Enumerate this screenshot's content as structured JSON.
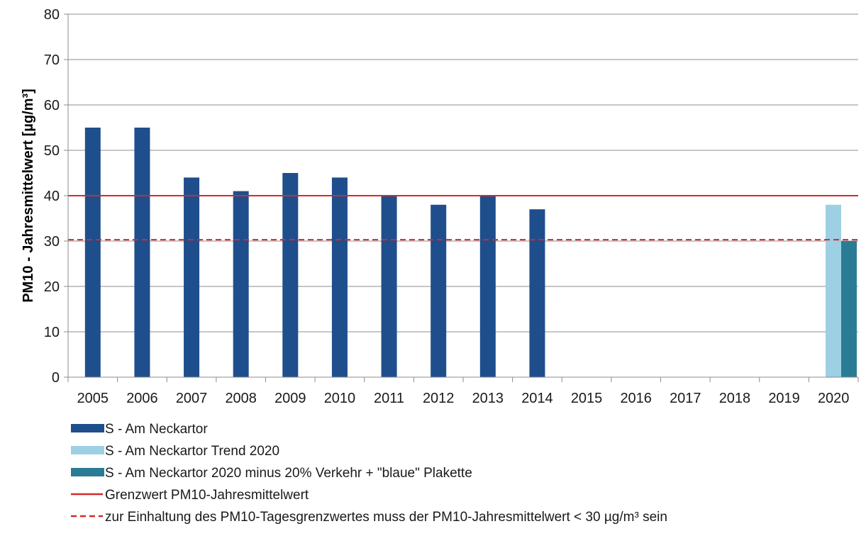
{
  "chart_data": {
    "type": "bar",
    "title": "",
    "xlabel": "",
    "ylabel": "PM10 - Jahresmittelwert [µg/m³]",
    "ylim": [
      0,
      80
    ],
    "yticks": [
      0,
      10,
      20,
      30,
      40,
      50,
      60,
      70,
      80
    ],
    "grid": "horizontal",
    "legend_position": "bottom-left",
    "categories": [
      "2005",
      "2006",
      "2007",
      "2008",
      "2009",
      "2010",
      "2011",
      "2012",
      "2013",
      "2014",
      "2015",
      "2016",
      "2017",
      "2018",
      "2019",
      "2020"
    ],
    "series": [
      {
        "name": "S - Am Neckartor",
        "color": "#1f4e8c",
        "values": [
          55,
          55,
          44,
          41,
          45,
          44,
          40,
          38,
          40,
          37,
          null,
          null,
          null,
          null,
          null,
          null
        ]
      },
      {
        "name": "S - Am Neckartor Trend 2020",
        "color": "#9dd0e3",
        "values": [
          null,
          null,
          null,
          null,
          null,
          null,
          null,
          null,
          null,
          null,
          null,
          null,
          null,
          null,
          null,
          38
        ]
      },
      {
        "name": "S - Am Neckartor 2020  minus 20% Verkehr + \"blaue\" Plakette",
        "color": "#2a7c95",
        "values": [
          null,
          null,
          null,
          null,
          null,
          null,
          null,
          null,
          null,
          null,
          null,
          null,
          null,
          null,
          null,
          30
        ]
      }
    ],
    "reference_lines": [
      {
        "name": "Grenzwert PM10-Jahresmittelwert",
        "value": 40,
        "color": "#d42a2a",
        "style": "solid"
      },
      {
        "name": "zur Einhaltung des PM10-Tagesgrenzwertes muss der PM10-Jahresmittelwert < 30 µg/m³ sein",
        "value": 30.3,
        "color": "#d42a2a",
        "style": "dashed"
      }
    ]
  }
}
